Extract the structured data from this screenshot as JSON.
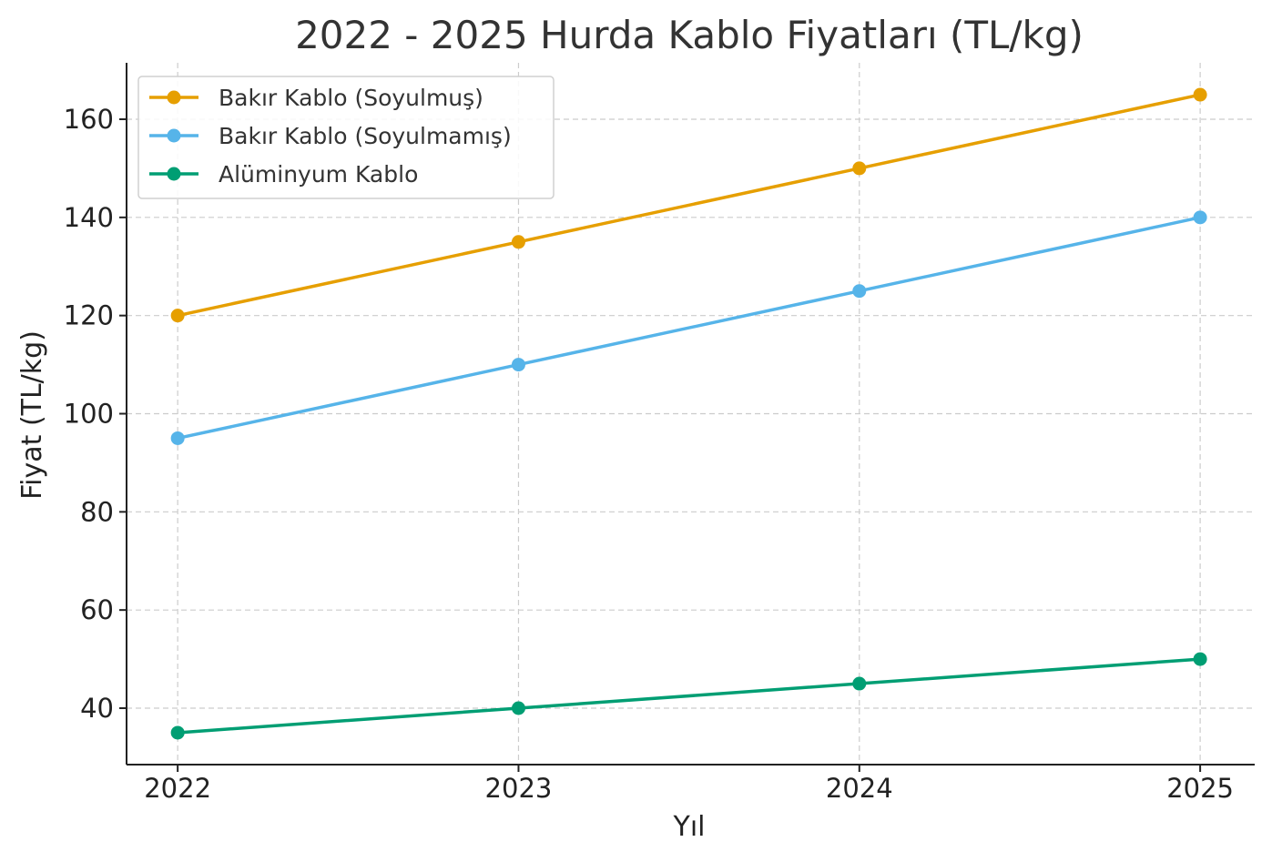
{
  "chart_data": {
    "type": "line",
    "title": "2022 - 2025 Hurda Kablo Fiyatları (TL/kg)",
    "xlabel": "Yıl",
    "ylabel": "Fiyat (TL/kg)",
    "x": [
      2022,
      2023,
      2024,
      2025
    ],
    "x_tick_labels": [
      "2022",
      "2023",
      "2024",
      "2025"
    ],
    "y_ticks": [
      40,
      60,
      80,
      100,
      120,
      140,
      160
    ],
    "xlim": [
      2021.85,
      2025.16
    ],
    "ylim": [
      28.5,
      171.5
    ],
    "grid": true,
    "legend_position": "top-left",
    "series": [
      {
        "name": "Bakır Kablo (Soyulmuş)",
        "values": [
          120,
          135,
          150,
          165
        ],
        "color": "#E69F00"
      },
      {
        "name": "Bakır Kablo (Soyulmamış)",
        "values": [
          95,
          110,
          125,
          140
        ],
        "color": "#56B4E9"
      },
      {
        "name": "Alüminyum Kablo",
        "values": [
          35,
          40,
          45,
          50
        ],
        "color": "#009E73"
      }
    ]
  }
}
